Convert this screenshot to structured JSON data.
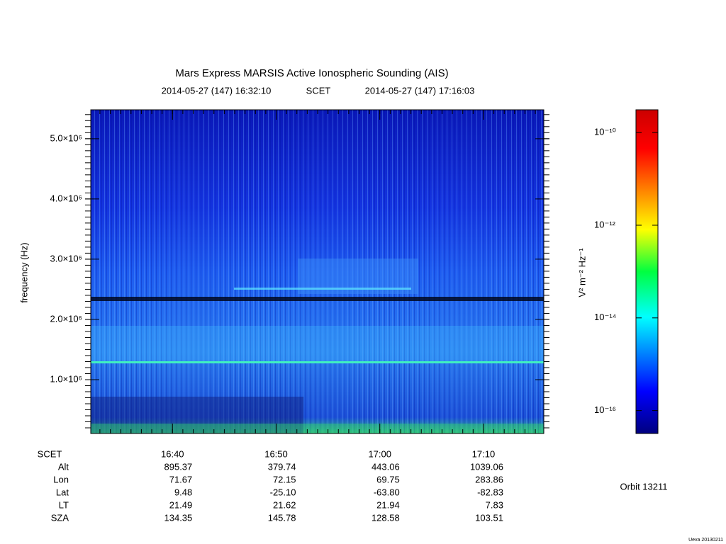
{
  "chart_data": {
    "type": "spectrogram",
    "title": "Mars Express MARSIS Active Ionospheric Sounding (AIS)",
    "time_start": "2014-05-27 (147) 16:32:10",
    "time_label": "SCET",
    "time_end": "2014-05-27 (147) 17:16:03",
    "y_label": "frequency (Hz)",
    "xlim": [
      59527,
      62149
    ],
    "xticks": [
      {
        "value": 60000,
        "label": "16:40"
      },
      {
        "value": 60600,
        "label": "16:50"
      },
      {
        "value": 61200,
        "label": "17:00"
      },
      {
        "value": 61800,
        "label": "17:10"
      }
    ],
    "ylim": [
      106000,
      5480000
    ],
    "yticks": [
      {
        "value": 1000000,
        "label": "1.0×10⁶"
      },
      {
        "value": 2000000,
        "label": "2.0×10⁶"
      },
      {
        "value": 3000000,
        "label": "3.0×10⁶"
      },
      {
        "value": 4000000,
        "label": "4.0×10⁶"
      },
      {
        "value": 5000000,
        "label": "5.0×10⁶"
      }
    ],
    "colorbar": {
      "label": "V² m⁻² Hz⁻¹",
      "log": true,
      "zlim": [
        3.2e-17,
        3.1e-10
      ],
      "zticks": [
        {
          "value": 1e-16,
          "label": "10⁻¹⁶"
        },
        {
          "value": 1e-14,
          "label": "10⁻¹⁴"
        },
        {
          "value": 1e-12,
          "label": "10⁻¹²"
        },
        {
          "value": 1e-10,
          "label": "10⁻¹⁰"
        }
      ]
    },
    "ephemeris": {
      "time_label": "SCET",
      "rows": [
        {
          "label": "Alt",
          "values": [
            "895.37",
            "379.74",
            "443.06",
            "1039.06"
          ]
        },
        {
          "label": "Lon",
          "values": [
            "71.67",
            "72.15",
            "69.75",
            "283.86"
          ]
        },
        {
          "label": "Lat",
          "values": [
            "9.48",
            "-25.10",
            "-63.80",
            "-82.83"
          ]
        },
        {
          "label": "LT",
          "values": [
            "21.49",
            "21.62",
            "21.94",
            "7.83"
          ]
        },
        {
          "label": "SZA",
          "values": [
            "134.35",
            "145.78",
            "128.58",
            "103.51"
          ]
        }
      ]
    },
    "orbit": "Orbit 13211",
    "footer": "Ueva 20130211"
  }
}
